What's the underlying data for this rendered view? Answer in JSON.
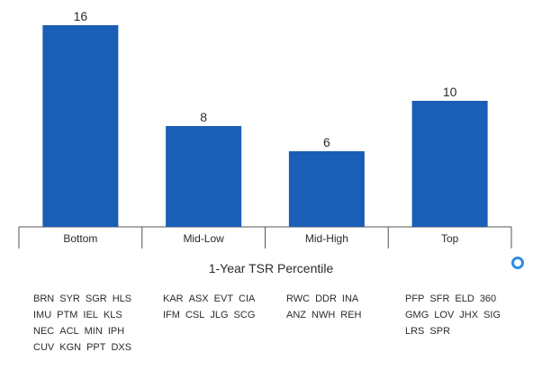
{
  "chart_data": {
    "type": "bar",
    "categories": [
      "Bottom",
      "Mid-Low",
      "Mid-High",
      "Top"
    ],
    "values": [
      16,
      8,
      6,
      10
    ],
    "xlabel": "1-Year TSR Percentile",
    "ylabel": "",
    "ylim": [
      0,
      16
    ],
    "bar_color": "#1a5eb5",
    "axis_color": "#555555",
    "grid": false
  },
  "tickers": [
    [
      [
        "BRN",
        "SYR",
        "SGR",
        "HLS"
      ],
      [
        "IMU",
        "PTM",
        "IEL",
        "KLS"
      ],
      [
        "NEC",
        "ACL",
        "MIN",
        "IPH"
      ],
      [
        "CUV",
        "KGN",
        "PPT",
        "DXS"
      ]
    ],
    [
      [
        "KAR",
        "ASX",
        "EVT",
        "CIA"
      ],
      [
        "IFM",
        "CSL",
        "JLG",
        "SCG"
      ]
    ],
    [
      [
        "RWC",
        "DDR",
        "INA"
      ],
      [
        "ANZ",
        "NWH",
        "REH"
      ]
    ],
    [
      [
        "PFP",
        "SFR",
        "ELD",
        "360"
      ],
      [
        "GMG",
        "LOV",
        "JHX",
        "SIG"
      ],
      [
        "LRS",
        "SPR"
      ]
    ]
  ],
  "accent_ring_color": "#2e8be6"
}
